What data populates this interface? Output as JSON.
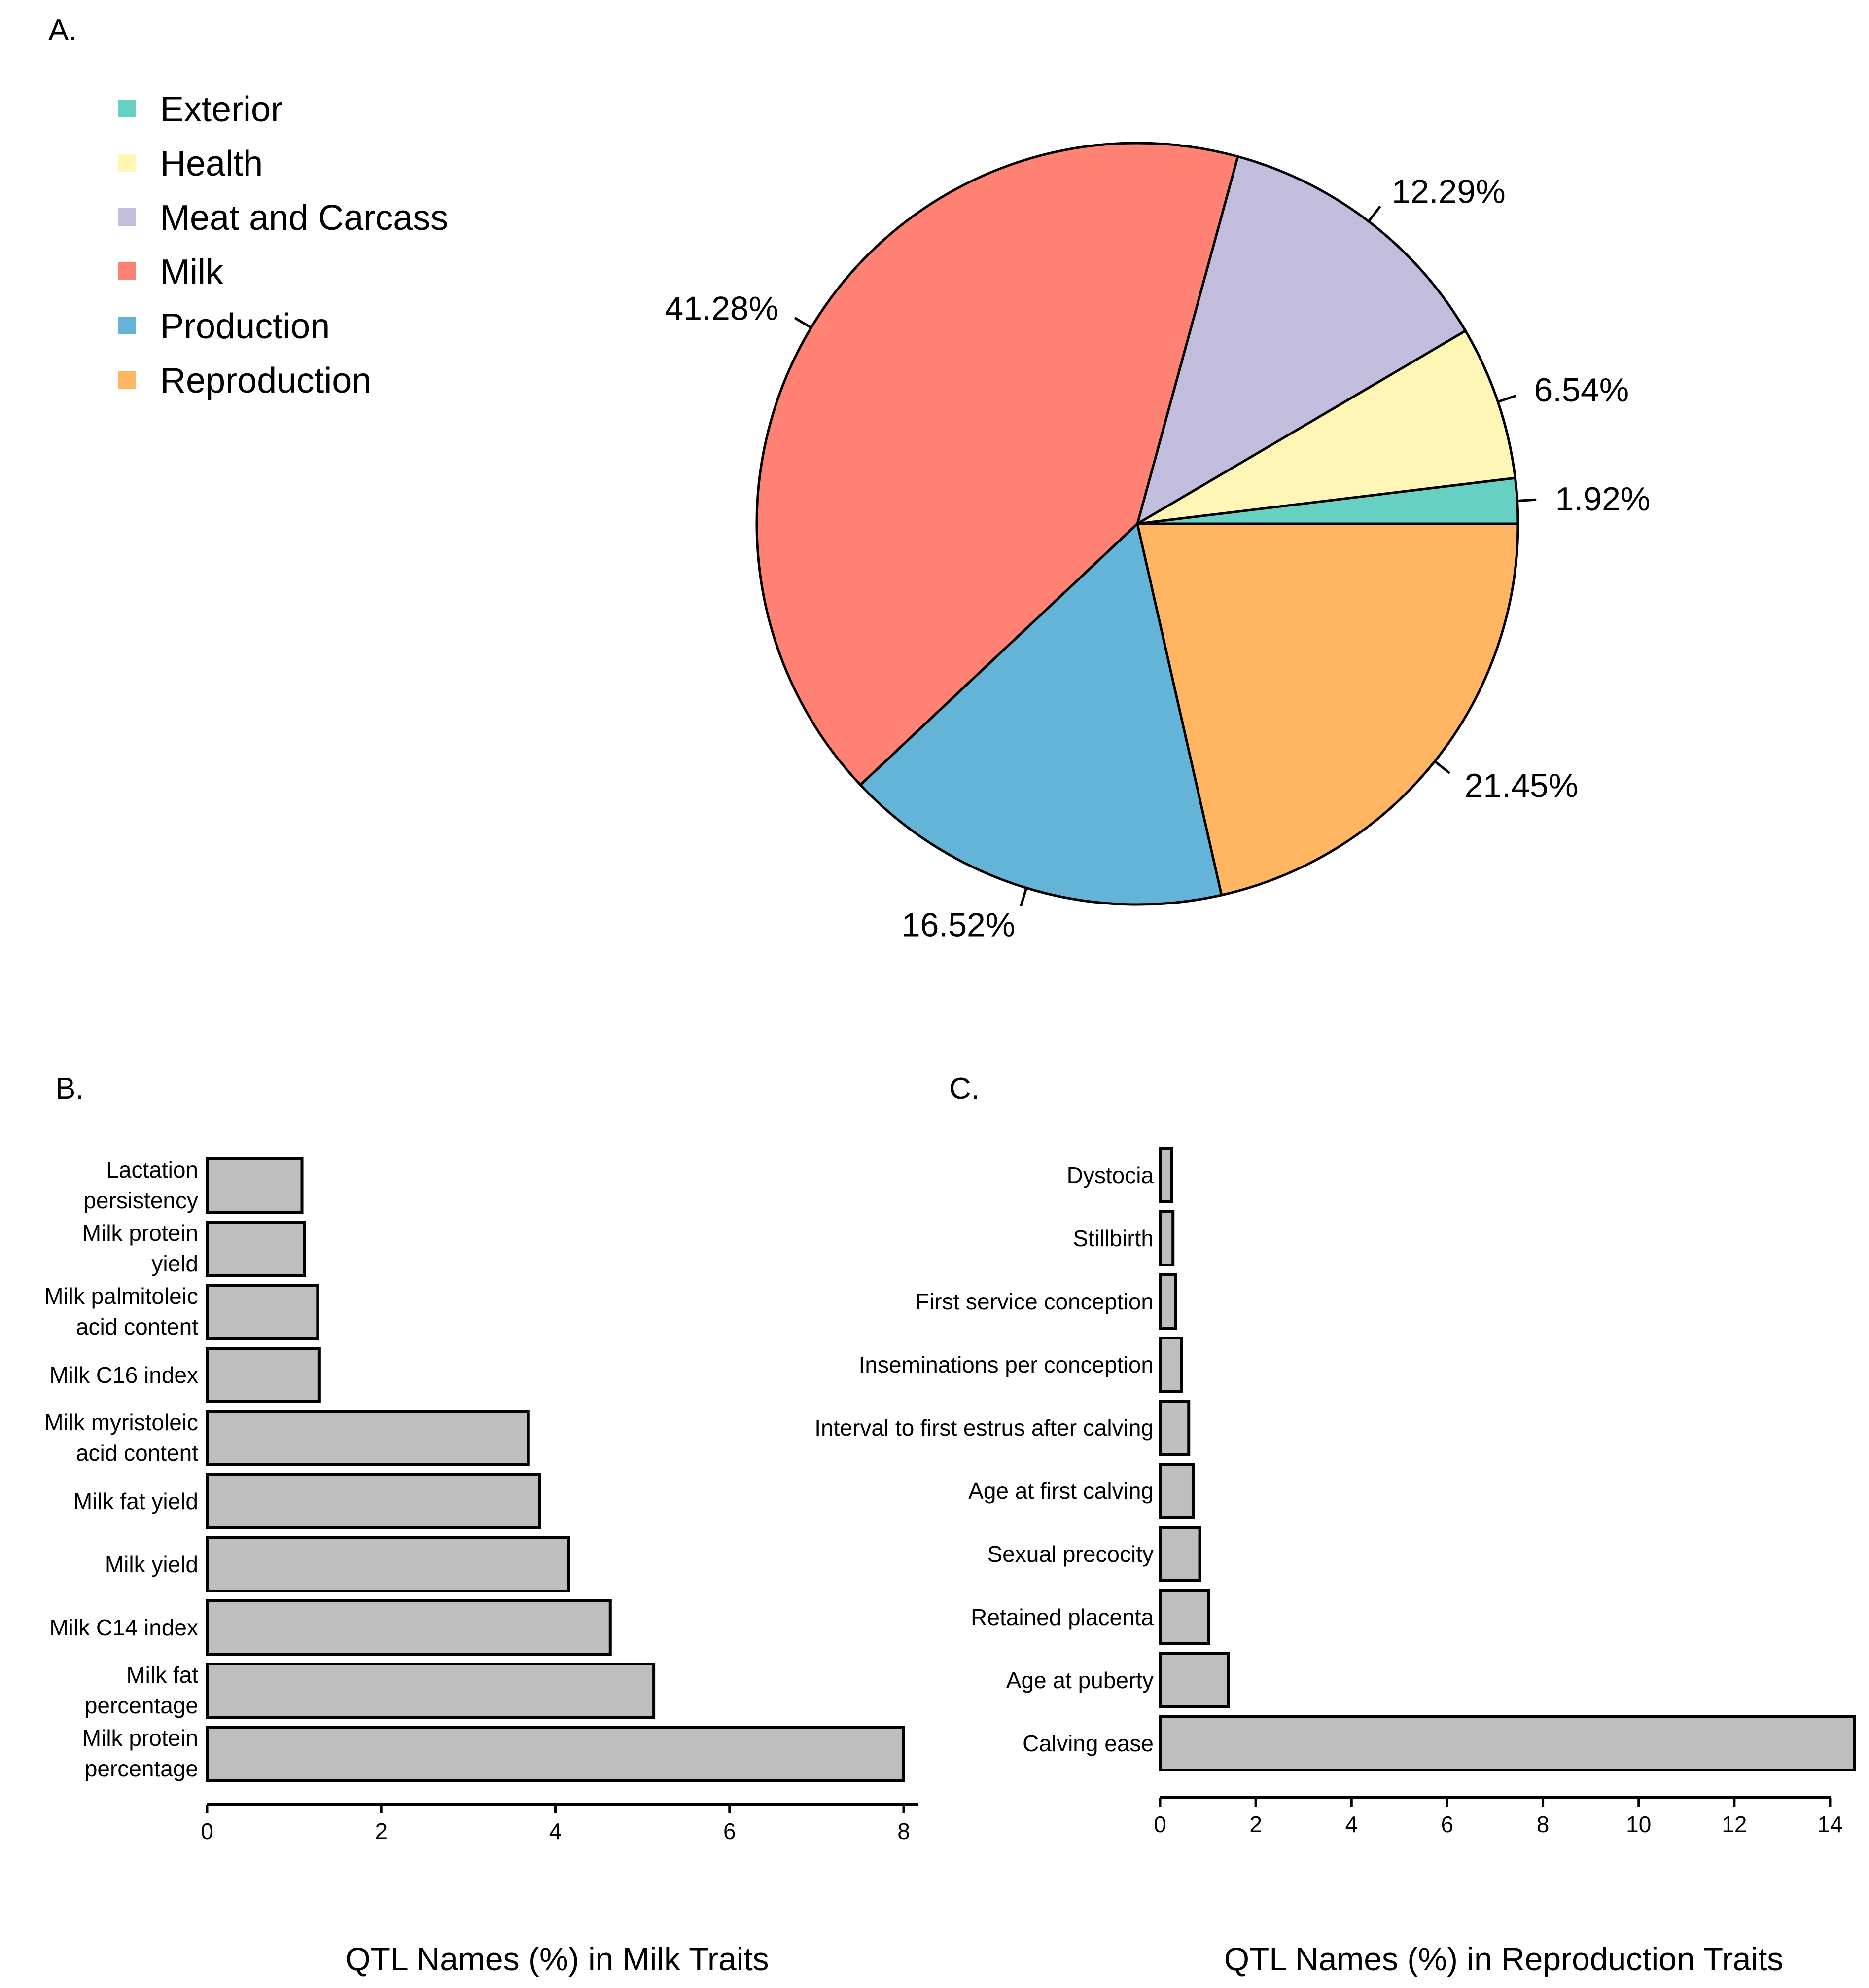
{
  "chart_data": [
    {
      "panel": "A.",
      "type": "pie",
      "direction": "counterclockwise from 0°",
      "legend_placement": "top-left",
      "slices": [
        {
          "label": "Exterior",
          "value": 1.92,
          "text": "1.92%",
          "color": "#66D1C2"
        },
        {
          "label": "Health",
          "value": 6.54,
          "text": "6.54%",
          "color": "#FFF6B6"
        },
        {
          "label": "Meat and Carcass",
          "value": 12.29,
          "text": "12.29%",
          "color": "#C2BCDD"
        },
        {
          "label": "Milk",
          "value": 41.28,
          "text": "41.28%",
          "color": "#FF8275"
        },
        {
          "label": "Production",
          "value": 16.52,
          "text": "16.52%",
          "color": "#63B4D7"
        },
        {
          "label": "Reproduction",
          "value": 21.45,
          "text": "21.45%",
          "color": "#FFB562"
        }
      ]
    },
    {
      "panel": "B.",
      "type": "bar",
      "orientation": "horizontal",
      "xlabel": "QTL Names (%) in Milk Traits",
      "xlim": [
        0,
        8
      ],
      "xticks": [
        "0",
        "2",
        "4",
        "6",
        "8"
      ],
      "bar_color": "#BEBEBE",
      "categories": [
        [
          "Lactation",
          "persistency"
        ],
        [
          "Milk protein",
          "yield"
        ],
        [
          "Milk palmitoleic",
          "acid content"
        ],
        [
          "Milk C16 index"
        ],
        [
          "Milk myristoleic",
          "acid content"
        ],
        [
          "Milk fat yield"
        ],
        [
          "Milk yield"
        ],
        [
          "Milk C14 index"
        ],
        [
          "Milk fat",
          "percentage"
        ],
        [
          "Milk protein",
          "percentage"
        ]
      ],
      "values": [
        1.09,
        1.12,
        1.27,
        1.29,
        3.69,
        3.82,
        4.15,
        4.63,
        5.13,
        8.0
      ]
    },
    {
      "panel": "C.",
      "type": "bar",
      "orientation": "horizontal",
      "xlabel": "QTL Names (%) in Reproduction Traits",
      "xlim": [
        0,
        14
      ],
      "xticks": [
        "0",
        "2",
        "4",
        "6",
        "8",
        "10",
        "12",
        "14"
      ],
      "bar_color": "#BEBEBE",
      "categories": [
        [
          "Dystocia"
        ],
        [
          "Stillbirth"
        ],
        [
          "First service conception"
        ],
        [
          "Inseminations per conception"
        ],
        [
          "Interval to first estrus after calving"
        ],
        [
          "Age at first calving"
        ],
        [
          "Sexual precocity"
        ],
        [
          "Retained placenta"
        ],
        [
          "Age at puberty"
        ],
        [
          "Calving ease"
        ]
      ],
      "values": [
        0.24,
        0.27,
        0.33,
        0.45,
        0.6,
        0.69,
        0.83,
        1.02,
        1.43,
        14.51
      ]
    }
  ]
}
